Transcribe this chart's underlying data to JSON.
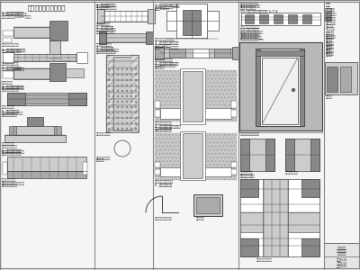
{
  "title": "加固改造节点构造做法",
  "bg_color": "#ffffff",
  "panel_bg": "#f8f8f8",
  "line_color": "#444444",
  "dark_fill": "#888888",
  "medium_fill": "#aaaaaa",
  "light_fill": "#cccccc",
  "white_fill": "#ffffff",
  "text_color": "#222222",
  "figsize": [
    4.0,
    3.0
  ],
  "dpi": 100,
  "panel_dividers": [
    105,
    170,
    265,
    360
  ]
}
